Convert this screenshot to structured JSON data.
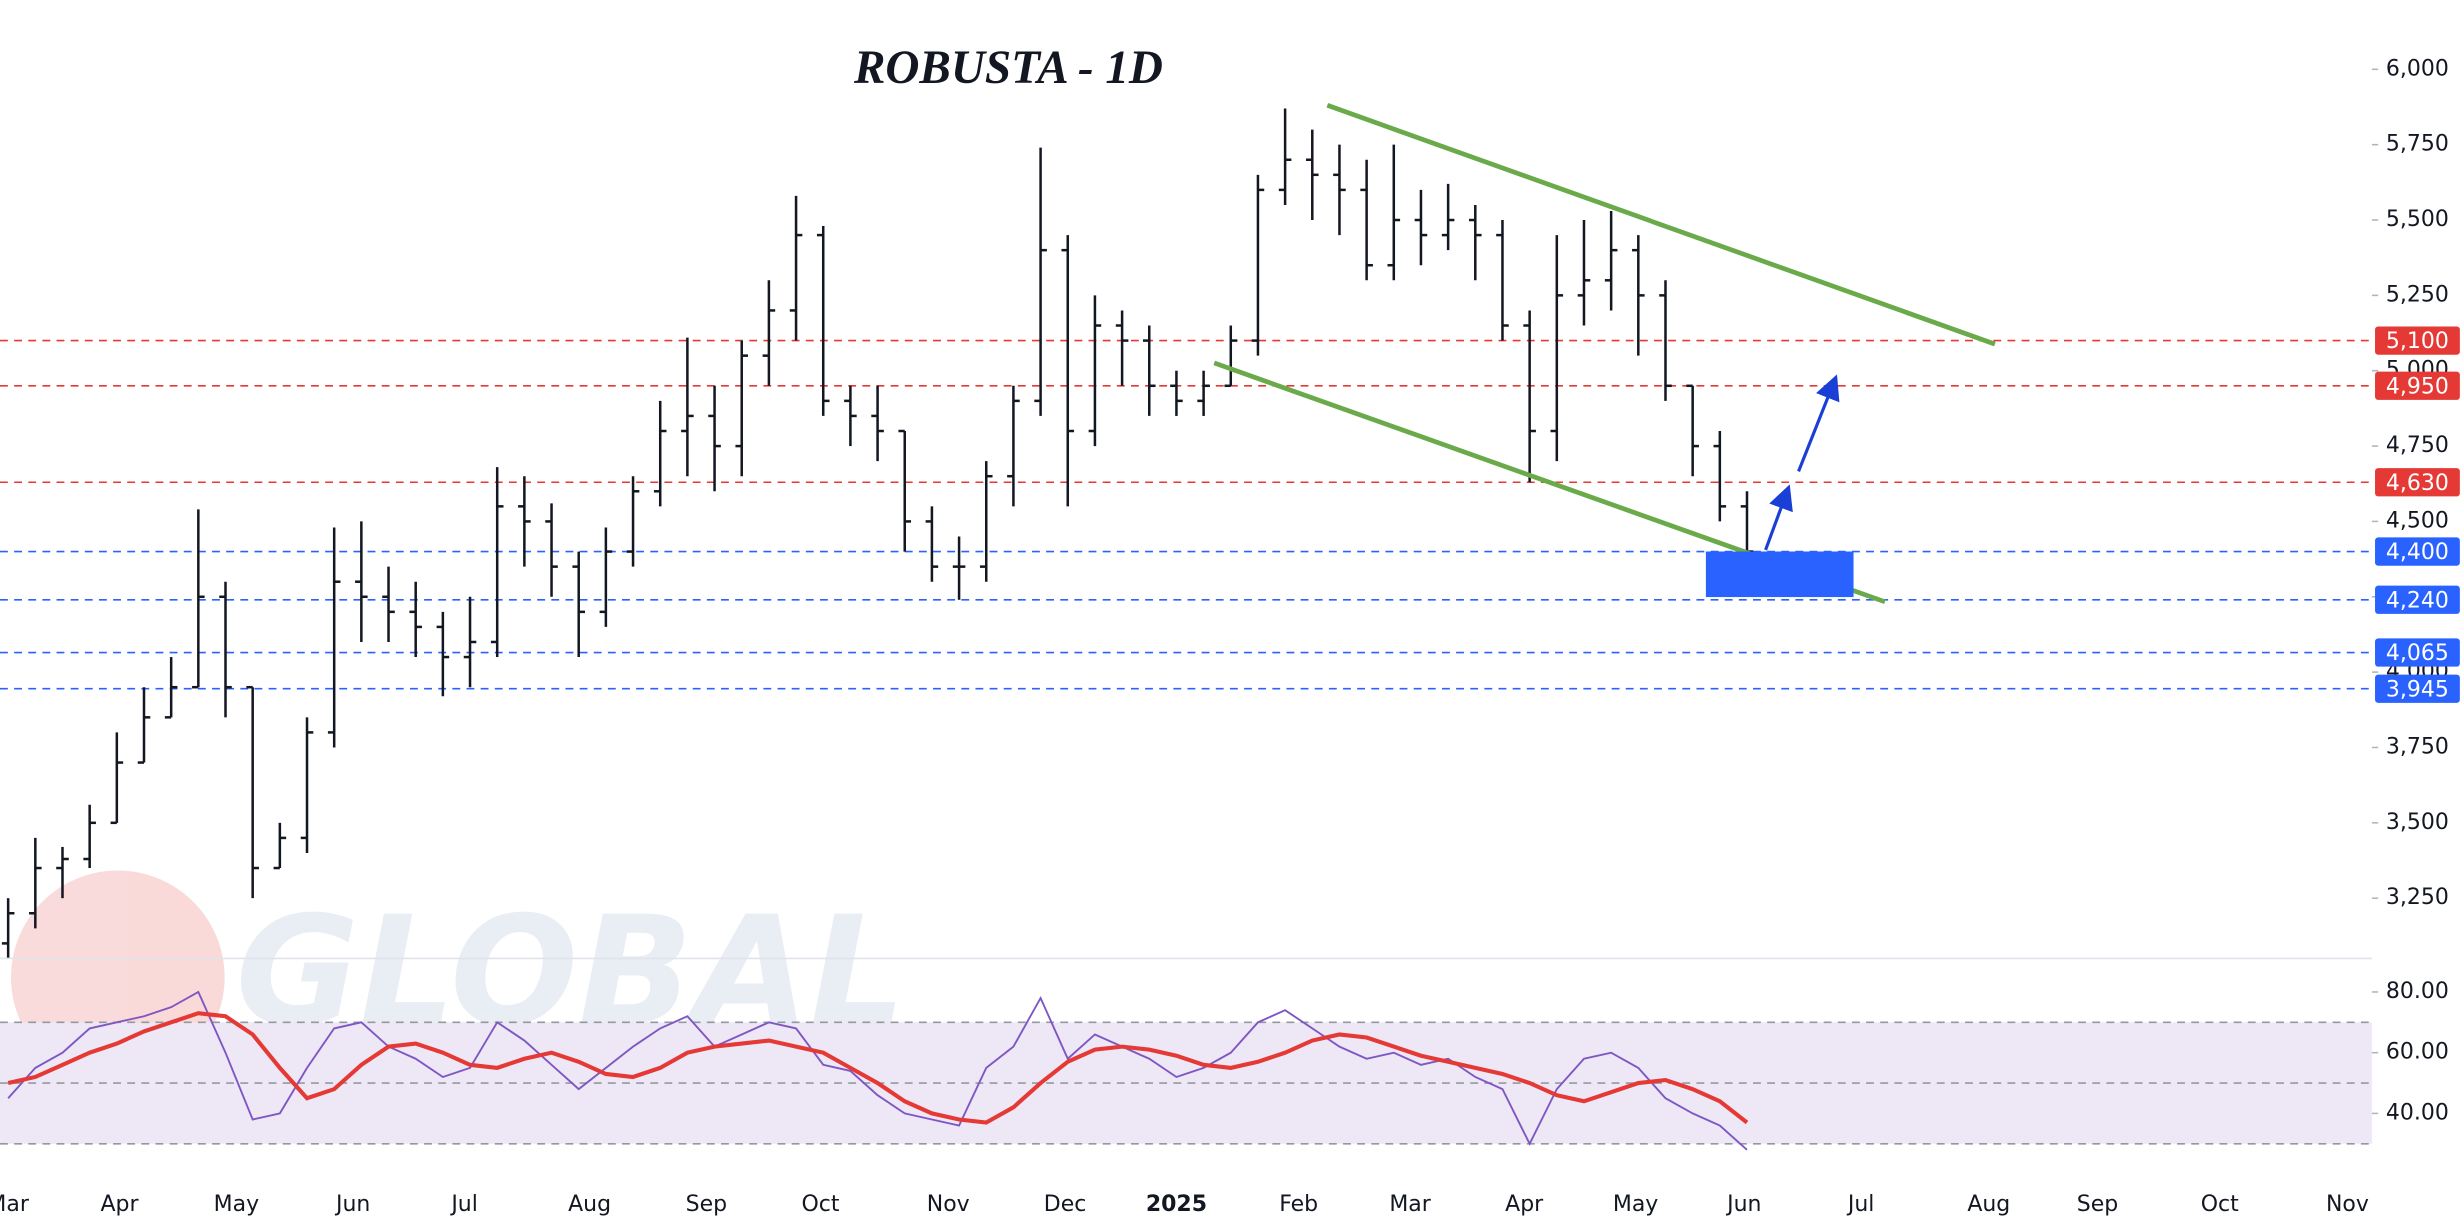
{
  "chart_data": [
    {
      "type": "ohlc",
      "title": "ROBUSTA - 1D",
      "watermark": "GLOBAL",
      "color": "#131722",
      "open": [
        3100,
        3200,
        3350,
        3380,
        3500,
        3700,
        3850,
        3950,
        4250,
        3950,
        3350,
        3450,
        3800,
        4300,
        4250,
        4200,
        4150,
        4050,
        4100,
        4550,
        4500,
        4350,
        4200,
        4400,
        4600,
        4800,
        4850,
        4750,
        5050,
        5200,
        5450,
        4900,
        4850,
        4800,
        4500,
        4350,
        4350,
        4650,
        4900,
        5400,
        4800,
        5150,
        5100,
        4950,
        4900,
        4950,
        5100,
        5600,
        5700,
        5650,
        5600,
        5350,
        5500,
        5450,
        5500,
        5450,
        5150,
        4800,
        5250,
        5300,
        5400,
        5250,
        4950,
        4750,
        4550
      ],
      "high": [
        3250,
        3450,
        3420,
        3560,
        3800,
        3950,
        4050,
        4540,
        4300,
        3950,
        3500,
        3850,
        4480,
        4500,
        4350,
        4300,
        4200,
        4250,
        4680,
        4650,
        4560,
        4400,
        4480,
        4650,
        4900,
        5110,
        4950,
        5100,
        5300,
        5580,
        5480,
        4950,
        4950,
        4800,
        4550,
        4450,
        4700,
        4950,
        5740,
        5450,
        5250,
        5200,
        5150,
        5000,
        5000,
        5150,
        5650,
        5870,
        5800,
        5750,
        5700,
        5750,
        5600,
        5620,
        5550,
        5500,
        5200,
        5450,
        5500,
        5530,
        5450,
        5300,
        4950,
        4800,
        4600
      ],
      "low": [
        3050,
        3150,
        3250,
        3350,
        3500,
        3700,
        3850,
        3950,
        3850,
        3250,
        3350,
        3400,
        3750,
        4100,
        4100,
        4050,
        3920,
        3950,
        4050,
        4350,
        4250,
        4050,
        4150,
        4350,
        4550,
        4650,
        4600,
        4650,
        4950,
        5100,
        4850,
        4750,
        4700,
        4400,
        4300,
        4240,
        4300,
        4550,
        4850,
        4550,
        4750,
        4950,
        4850,
        4850,
        4850,
        4950,
        5050,
        5550,
        5500,
        5450,
        5300,
        5300,
        5350,
        5400,
        5300,
        5100,
        4630,
        4700,
        5150,
        5200,
        5050,
        4900,
        4650,
        4500,
        4390
      ],
      "close": [
        3200,
        3350,
        3380,
        3500,
        3700,
        3850,
        3950,
        4250,
        3950,
        3350,
        3450,
        3800,
        4300,
        4250,
        4200,
        4150,
        4050,
        4100,
        4550,
        4500,
        4350,
        4200,
        4400,
        4600,
        4800,
        4850,
        4750,
        5050,
        5200,
        5450,
        4900,
        4850,
        4800,
        4500,
        4350,
        4350,
        4650,
        4900,
        5400,
        4800,
        5150,
        5100,
        4950,
        4900,
        4950,
        5100,
        5600,
        5700,
        5650,
        5600,
        5350,
        5500,
        5450,
        5500,
        5450,
        5150,
        4800,
        5250,
        5300,
        5400,
        5250,
        4950,
        4750,
        4550,
        4400
      ],
      "xlim": [
        -0.3,
        87
      ],
      "xticks": [
        {
          "value": 0,
          "label": "Mar"
        },
        {
          "value": 4.1,
          "label": "Apr"
        },
        {
          "value": 8.4,
          "label": "May"
        },
        {
          "value": 12.7,
          "label": "Jun"
        },
        {
          "value": 16.8,
          "label": "Jul"
        },
        {
          "value": 21.4,
          "label": "Aug"
        },
        {
          "value": 25.7,
          "label": "Sep"
        },
        {
          "value": 29.9,
          "label": "Oct"
        },
        {
          "value": 34.6,
          "label": "Nov"
        },
        {
          "value": 38.9,
          "label": "Dec"
        },
        {
          "value": 43,
          "label": "2025",
          "bold": true
        },
        {
          "value": 47.5,
          "label": "Feb"
        },
        {
          "value": 51.6,
          "label": "Mar"
        },
        {
          "value": 55.8,
          "label": "Apr"
        },
        {
          "value": 59.9,
          "label": "May"
        },
        {
          "value": 63.9,
          "label": "Jun"
        },
        {
          "value": 68.2,
          "label": "Jul"
        },
        {
          "value": 72.9,
          "label": "Aug"
        },
        {
          "value": 76.9,
          "label": "Sep"
        },
        {
          "value": 81.4,
          "label": "Oct"
        },
        {
          "value": 86.1,
          "label": "Nov"
        }
      ],
      "ylim": [
        3050,
        6230
      ],
      "yticks": [
        {
          "value": 3250,
          "label": "3,250"
        },
        {
          "value": 3500,
          "label": "3,500"
        },
        {
          "value": 3750,
          "label": "3,750"
        },
        {
          "value": 4000,
          "label": "4,000"
        },
        {
          "value": 4250,
          "label": "4,250"
        },
        {
          "value": 4500,
          "label": "4,500"
        },
        {
          "value": 4750,
          "label": "4,750"
        },
        {
          "value": 5000,
          "label": "5,000"
        },
        {
          "value": 5250,
          "label": "5,250"
        },
        {
          "value": 5500,
          "label": "5,500"
        },
        {
          "value": 5750,
          "label": "5,750"
        },
        {
          "value": 6000,
          "label": "6,000"
        }
      ],
      "levels": [
        {
          "value": 5100,
          "label": "5,100",
          "color": "#e53935"
        },
        {
          "value": 4950,
          "label": "4,950",
          "color": "#e53935"
        },
        {
          "value": 4630,
          "label": "4,630",
          "color": "#e53935"
        },
        {
          "value": 4400,
          "label": "4,400",
          "color": "#2962ff"
        },
        {
          "value": 4240,
          "label": "4,240",
          "color": "#2962ff"
        },
        {
          "value": 4065,
          "label": "4,065",
          "color": "#2962ff"
        },
        {
          "value": 3945,
          "label": "3,945",
          "color": "#2962ff"
        }
      ]
    },
    {
      "type": "line",
      "xlim": [
        -0.3,
        87
      ],
      "ylim": [
        16,
        90
      ],
      "yticks": [
        {
          "value": 40,
          "label": "40.00"
        },
        {
          "value": 60,
          "label": "60.00"
        },
        {
          "value": 80,
          "label": "80.00"
        }
      ],
      "band": [
        30,
        70
      ],
      "band_color": "#ede7f6",
      "levels": [
        30,
        50,
        70
      ],
      "series": [
        {
          "color": "#7e57c2",
          "values": [
            45,
            55,
            60,
            68,
            70,
            72,
            75,
            80,
            60,
            38,
            40,
            55,
            68,
            70,
            62,
            58,
            52,
            55,
            70,
            64,
            56,
            48,
            55,
            62,
            68,
            72,
            62,
            66,
            70,
            68,
            56,
            54,
            46,
            40,
            38,
            36,
            55,
            62,
            78,
            58,
            66,
            62,
            58,
            52,
            55,
            60,
            70,
            74,
            68,
            62,
            58,
            60,
            56,
            58,
            52,
            48,
            30,
            48,
            58,
            60,
            55,
            45,
            40,
            36,
            28
          ]
        },
        {
          "color": "#e53935",
          "values": [
            50,
            52,
            56,
            60,
            63,
            67,
            70,
            73,
            72,
            66,
            55,
            45,
            48,
            56,
            62,
            63,
            60,
            56,
            55,
            58,
            60,
            57,
            53,
            52,
            55,
            60,
            62,
            63,
            64,
            62,
            60,
            55,
            50,
            44,
            40,
            38,
            37,
            42,
            50,
            57,
            61,
            62,
            61,
            59,
            56,
            55,
            57,
            60,
            64,
            66,
            65,
            62,
            59,
            57,
            55,
            53,
            50,
            46,
            44,
            47,
            50,
            51,
            48,
            44,
            37
          ]
        }
      ]
    }
  ]
}
